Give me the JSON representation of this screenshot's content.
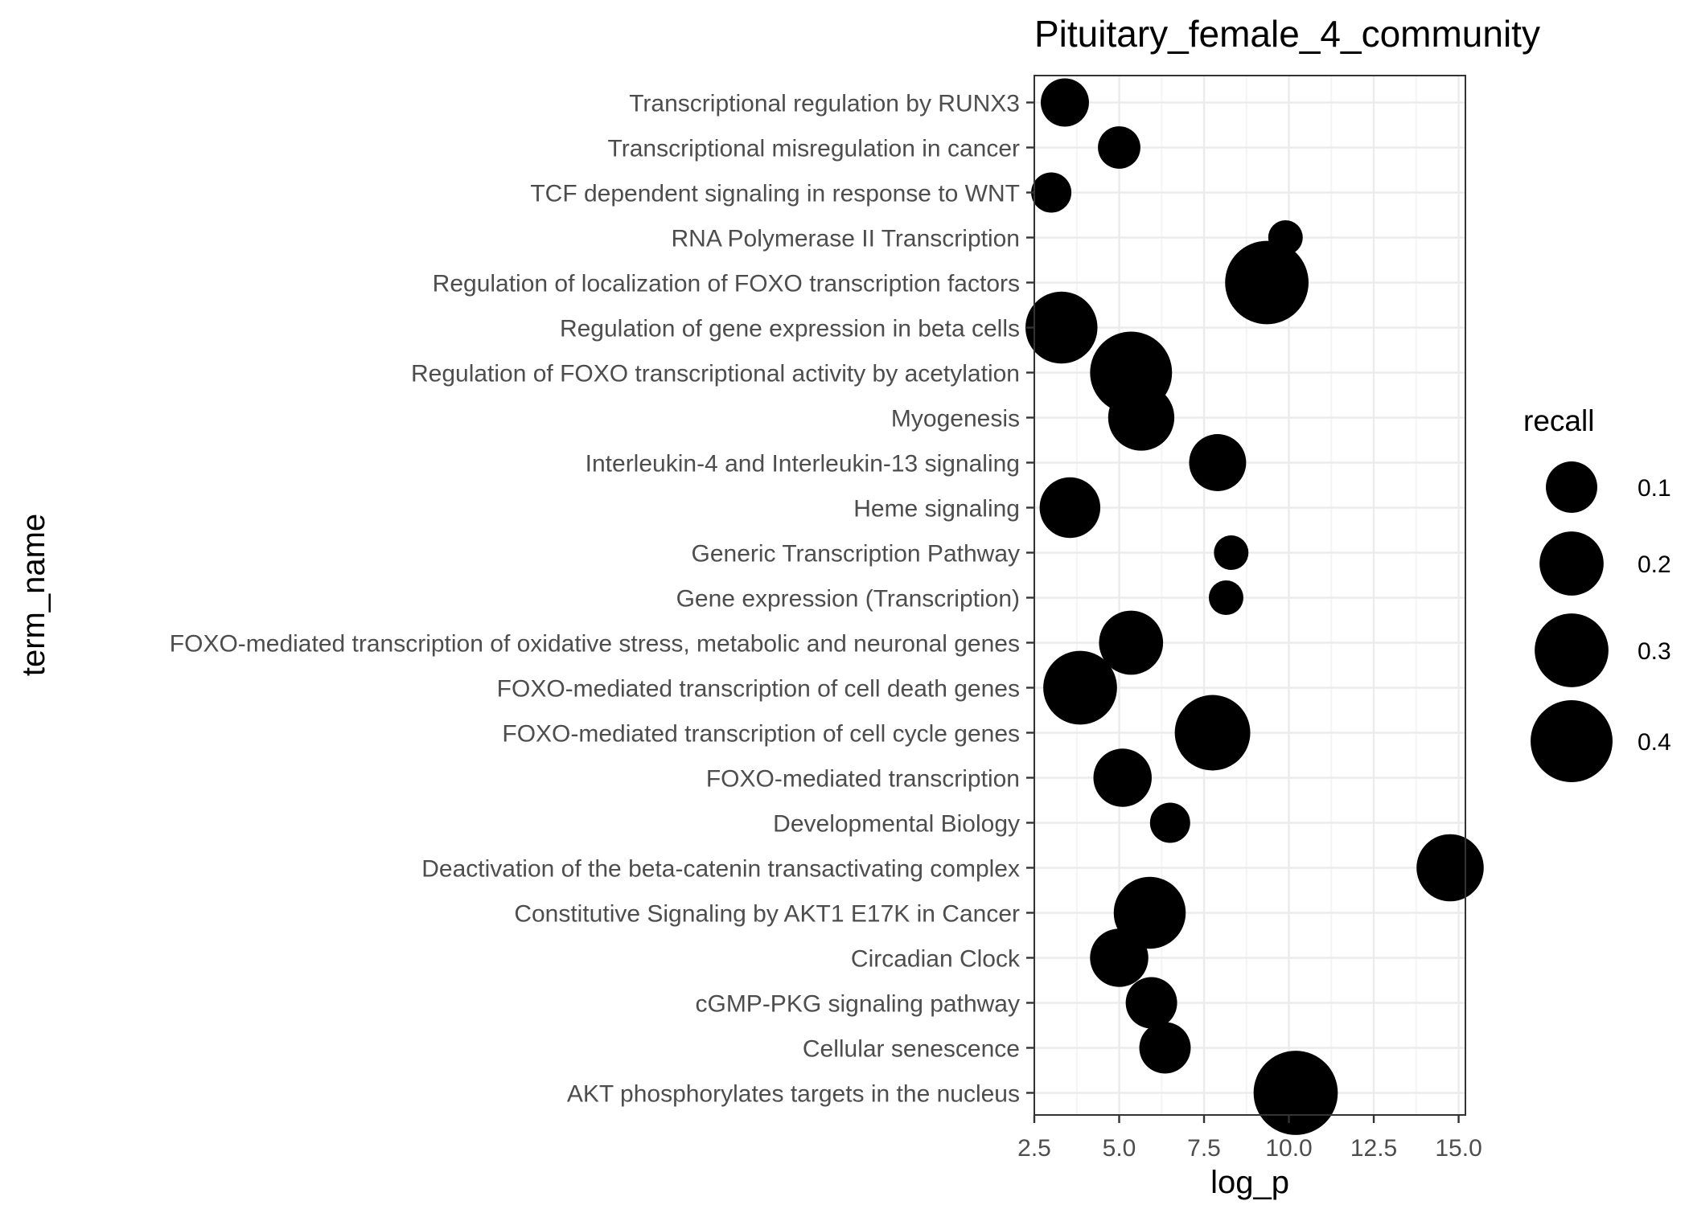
{
  "chart_data": {
    "type": "scatter",
    "title": "Pituitary_female_4_community",
    "xlabel": "log_p",
    "ylabel": "term_name",
    "xlim": [
      2.5,
      15.2
    ],
    "xticks": [
      "2.5",
      "5.0",
      "7.5",
      "10.0",
      "12.5",
      "15.0"
    ],
    "grid": true,
    "size_variable": "recall",
    "legend": {
      "title": "recall",
      "placement": "right",
      "entries": [
        {
          "label": "0.1",
          "value": 0.1
        },
        {
          "label": "0.2",
          "value": 0.2
        },
        {
          "label": "0.3",
          "value": 0.3
        },
        {
          "label": "0.4",
          "value": 0.4
        }
      ]
    },
    "categories": [
      "AKT phosphorylates targets in the nucleus",
      "Cellular senescence",
      "cGMP-PKG signaling pathway",
      "Circadian Clock",
      "Constitutive Signaling by AKT1 E17K in Cancer",
      "Deactivation of the beta-catenin transactivating complex",
      "Developmental Biology",
      "FOXO-mediated transcription",
      "FOXO-mediated transcription of cell cycle genes",
      "FOXO-mediated transcription of cell death genes",
      "FOXO-mediated transcription of oxidative stress, metabolic and neuronal genes",
      "Gene expression (Transcription)",
      "Generic Transcription Pathway",
      "Heme signaling",
      "Interleukin-4 and Interleukin-13 signaling",
      "Myogenesis",
      "Regulation of FOXO transcriptional activity by acetylation",
      "Regulation of gene expression in beta cells",
      "Regulation of localization of FOXO transcription factors",
      "RNA Polymerase II Transcription",
      "TCF dependent signaling in response to WNT",
      "Transcriptional misregulation in cancer",
      "Transcriptional regulation by RUNX3"
    ],
    "points": [
      {
        "term": "AKT phosphorylates targets in the nucleus",
        "log_p": 10.2,
        "recall": 0.43
      },
      {
        "term": "Cellular senescence",
        "log_p": 6.35,
        "recall": 0.1
      },
      {
        "term": "cGMP-PKG signaling pathway",
        "log_p": 5.95,
        "recall": 0.1
      },
      {
        "term": "Circadian Clock",
        "log_p": 5.0,
        "recall": 0.15
      },
      {
        "term": "Constitutive Signaling by AKT1 E17K in Cancer",
        "log_p": 5.9,
        "recall": 0.28
      },
      {
        "term": "Deactivation of the beta-catenin transactivating complex",
        "log_p": 14.75,
        "recall": 0.23
      },
      {
        "term": "Developmental Biology",
        "log_p": 6.5,
        "recall": 0.04
      },
      {
        "term": "FOXO-mediated transcription",
        "log_p": 5.1,
        "recall": 0.15
      },
      {
        "term": "FOXO-mediated transcription of cell cycle genes",
        "log_p": 7.75,
        "recall": 0.32
      },
      {
        "term": "FOXO-mediated transcription of cell death genes",
        "log_p": 3.85,
        "recall": 0.3
      },
      {
        "term": "FOXO-mediated transcription of oxidative stress, metabolic and neuronal genes",
        "log_p": 5.35,
        "recall": 0.2
      },
      {
        "term": "Gene expression (Transcription)",
        "log_p": 8.15,
        "recall": 0.02
      },
      {
        "term": "Generic Transcription Pathway",
        "log_p": 8.3,
        "recall": 0.02
      },
      {
        "term": "Heme signaling",
        "log_p": 3.55,
        "recall": 0.17
      },
      {
        "term": "Interleukin-4 and Interleukin-13 signaling",
        "log_p": 7.9,
        "recall": 0.14
      },
      {
        "term": "Myogenesis",
        "log_p": 5.65,
        "recall": 0.22
      },
      {
        "term": "Regulation of FOXO transcriptional activity by acetylation",
        "log_p": 5.35,
        "recall": 0.4
      },
      {
        "term": "Regulation of gene expression in beta cells",
        "log_p": 3.3,
        "recall": 0.28
      },
      {
        "term": "Regulation of localization of FOXO transcription factors",
        "log_p": 9.35,
        "recall": 0.42
      },
      {
        "term": "RNA Polymerase II Transcription",
        "log_p": 9.9,
        "recall": 0.02
      },
      {
        "term": "TCF dependent signaling in response to WNT",
        "log_p": 3.0,
        "recall": 0.04
      },
      {
        "term": "Transcriptional misregulation in cancer",
        "log_p": 5.0,
        "recall": 0.05
      },
      {
        "term": "Transcriptional regulation by RUNX3",
        "log_p": 3.4,
        "recall": 0.08
      }
    ]
  },
  "colors": {
    "point": "#000000",
    "panel_border": "#333333",
    "grid_major": "#ebebeb",
    "grid_minor": "#f4f4f4",
    "tick_text": "#4d4d4d",
    "tick_mark": "#333333"
  }
}
